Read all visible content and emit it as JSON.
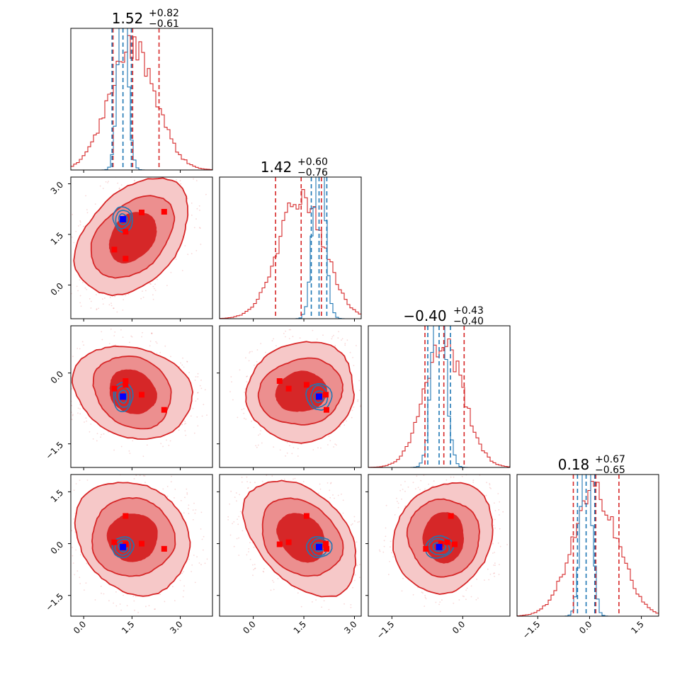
{
  "chart_data": {
    "type": "corner",
    "colors": {
      "posterior": "#d62728",
      "posterior_fill_outer": "#f6c8c8",
      "posterior_fill_mid": "#ec8f8f",
      "posterior_fill_inner": "#d62728",
      "comparison": "#1f77b4",
      "truth_marker": "#0000ff",
      "sample_marker": "#ff0000"
    },
    "parameters": [
      {
        "range": [
          -0.4,
          4.0
        ],
        "ticks": [
          0.0,
          1.5,
          3.0
        ],
        "tick_labels": [
          "0.0",
          "1.5",
          "3.0"
        ],
        "title": {
          "value": "1.52",
          "plus": "+0.82",
          "minus": "−0.61"
        },
        "red_quantiles": [
          0.91,
          1.52,
          2.34
        ],
        "blue_quantiles": [
          0.88,
          1.22,
          1.48
        ],
        "red_center": 1.52,
        "red_sigma": 0.72,
        "blue_center": 1.22,
        "blue_sigma": 0.15
      },
      {
        "range": [
          -1.0,
          3.2
        ],
        "ticks": [
          0.0,
          1.5,
          3.0
        ],
        "tick_labels": [
          "0.0",
          "1.5",
          "3.0"
        ],
        "title": {
          "value": "1.42",
          "plus": "+0.60",
          "minus": "−0.76"
        },
        "red_quantiles": [
          0.66,
          1.42,
          2.02
        ],
        "blue_quantiles": [
          1.72,
          1.95,
          2.18
        ],
        "red_center": 1.42,
        "red_sigma": 0.68,
        "blue_center": 1.95,
        "blue_sigma": 0.17
      },
      {
        "range": [
          -2.0,
          1.0
        ],
        "ticks": [
          -1.5,
          0.0
        ],
        "tick_labels": [
          "−1.5",
          "0.0"
        ],
        "title": {
          "value": "−0.40",
          "plus": "+0.43",
          "minus": "−0.40"
        },
        "red_quantiles": [
          -0.8,
          -0.4,
          0.03
        ],
        "blue_quantiles": [
          -0.74,
          -0.5,
          -0.26
        ],
        "red_center": -0.4,
        "red_sigma": 0.42,
        "blue_center": -0.5,
        "blue_sigma": 0.14
      },
      {
        "range": [
          -2.1,
          2.0
        ],
        "ticks": [
          -1.5,
          0.0,
          1.5
        ],
        "tick_labels": [
          "−1.5",
          "0.0",
          "1.5"
        ],
        "title": {
          "value": "0.18",
          "plus": "+0.67",
          "minus": "−0.65"
        },
        "red_quantiles": [
          -0.47,
          0.18,
          0.85
        ],
        "blue_quantiles": [
          -0.35,
          -0.1,
          0.15
        ],
        "red_center": 0.18,
        "red_sigma": 0.66,
        "blue_center": -0.1,
        "blue_sigma": 0.15
      }
    ],
    "truth_point": [
      1.22,
      1.95,
      -0.5,
      -0.1
    ],
    "sample_points": [
      [
        1.3,
        1.58,
        -0.25,
        0.8
      ],
      [
        2.5,
        2.17,
        -0.78,
        -0.15
      ],
      [
        0.95,
        1.05,
        -0.33,
        0.04
      ],
      [
        1.8,
        2.15,
        -0.46,
        0.0
      ],
      [
        1.3,
        0.78,
        -0.17,
        -0.02
      ]
    ]
  }
}
